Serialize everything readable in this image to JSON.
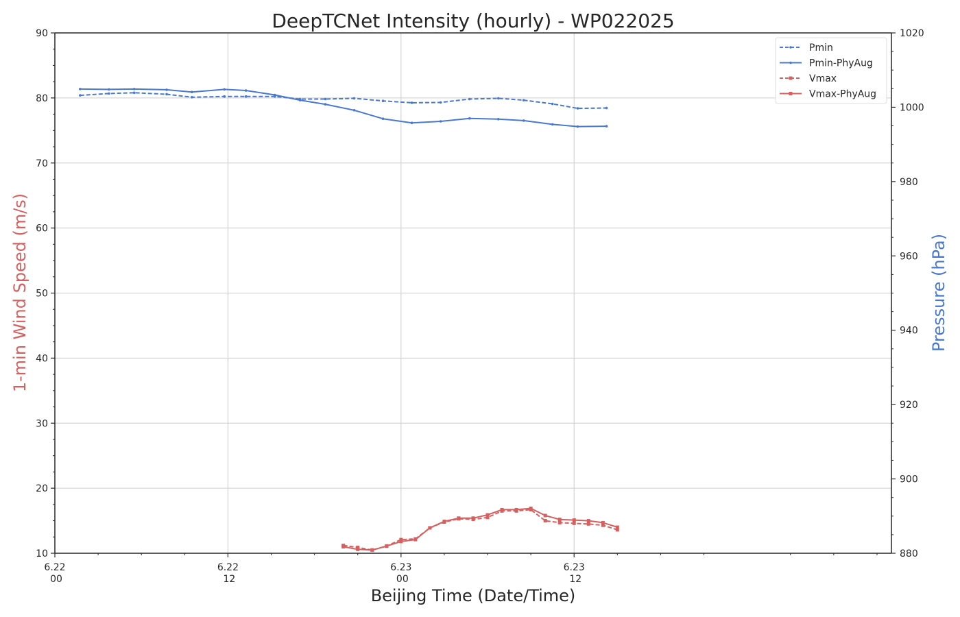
{
  "chart_data": {
    "type": "line",
    "title": "DeepTCNet Intensity (hourly) - WP022025",
    "xlabel": "Beijing Time (Date/Time)",
    "ylabel_left": "1-min Wind Speed (m/s)",
    "ylabel_right": "Pressure (hPa)",
    "x_unit": "hours since 6.22 00",
    "x_range": [
      0,
      58
    ],
    "x_ticks": [
      {
        "value": 0,
        "date": "6.22",
        "time": "00"
      },
      {
        "value": 12,
        "date": "6.22",
        "time": "12"
      },
      {
        "value": 24,
        "date": "6.23",
        "time": "00"
      },
      {
        "value": 36,
        "date": "6.23",
        "time": "12"
      }
    ],
    "ylim_left": [
      10,
      90
    ],
    "yticks_left": [
      "10",
      "20",
      "30",
      "40",
      "50",
      "60",
      "70",
      "80",
      "90"
    ],
    "ylim_right": [
      880,
      1020
    ],
    "yticks_right": [
      "880",
      "900",
      "920",
      "940",
      "960",
      "980",
      "1000",
      "1020"
    ],
    "grid": true,
    "legend_position": "top-right",
    "colors": {
      "pressure": "#4878cf",
      "wind": "#d65f5f",
      "axis": "#262626",
      "grid": "#cccccc"
    },
    "series": [
      {
        "name": "Pmin",
        "axis": "right",
        "color": "#4878cf",
        "dashed": true,
        "marker": "dot",
        "x": [
          1.75,
          3.75,
          5.5,
          7.75,
          9.5,
          11.75,
          13.25,
          15.25,
          17.0,
          18.75,
          20.75,
          22.75,
          24.75,
          26.75,
          28.75,
          30.75,
          32.5,
          34.5,
          36.25,
          38.25
        ],
        "y": [
          1003.2,
          1003.7,
          1003.9,
          1003.5,
          1002.7,
          1002.9,
          1002.9,
          1002.9,
          1002.2,
          1002.2,
          1002.4,
          1001.7,
          1001.2,
          1001.3,
          1002.2,
          1002.4,
          1001.9,
          1000.9,
          999.7,
          999.8
        ]
      },
      {
        "name": "Pmin-PhyAug",
        "axis": "right",
        "color": "#4878cf",
        "dashed": false,
        "marker": "dot",
        "x": [
          1.75,
          3.75,
          5.5,
          7.75,
          9.5,
          11.75,
          13.25,
          15.25,
          17.0,
          18.75,
          20.75,
          22.75,
          24.75,
          26.75,
          28.75,
          30.75,
          32.5,
          34.5,
          36.25,
          38.25
        ],
        "y": [
          1004.9,
          1004.8,
          1004.9,
          1004.7,
          1004.1,
          1004.8,
          1004.5,
          1003.3,
          1001.9,
          1000.8,
          999.2,
          996.9,
          995.8,
          996.2,
          997.0,
          996.8,
          996.4,
          995.4,
          994.8,
          994.9
        ]
      },
      {
        "name": "Vmax",
        "axis": "left",
        "color": "#d65f5f",
        "dashed": true,
        "marker": "square",
        "x": [
          20.0,
          21.0,
          22.0,
          23.0,
          24.0,
          25.0,
          26.0,
          27.0,
          28.0,
          29.0,
          30.0,
          31.0,
          32.0,
          33.0,
          34.0,
          35.0,
          36.0,
          37.0,
          38.0,
          39.0
        ],
        "y": [
          11.2,
          10.9,
          10.5,
          11.1,
          12.1,
          12.2,
          13.9,
          14.8,
          15.3,
          15.2,
          15.5,
          16.5,
          16.5,
          16.7,
          15.0,
          14.7,
          14.6,
          14.5,
          14.3,
          13.6
        ]
      },
      {
        "name": "Vmax-PhyAug",
        "axis": "left",
        "color": "#d65f5f",
        "dashed": false,
        "marker": "square",
        "x": [
          20.0,
          21.0,
          22.0,
          23.0,
          24.0,
          25.0,
          26.0,
          27.0,
          28.0,
          29.0,
          30.0,
          31.0,
          32.0,
          33.0,
          34.0,
          35.0,
          36.0,
          37.0,
          38.0,
          39.0
        ],
        "y": [
          11.0,
          10.6,
          10.5,
          11.1,
          11.8,
          12.1,
          13.9,
          14.9,
          15.4,
          15.4,
          15.9,
          16.7,
          16.7,
          16.9,
          15.8,
          15.2,
          15.1,
          15.0,
          14.7,
          14.0
        ]
      }
    ]
  }
}
